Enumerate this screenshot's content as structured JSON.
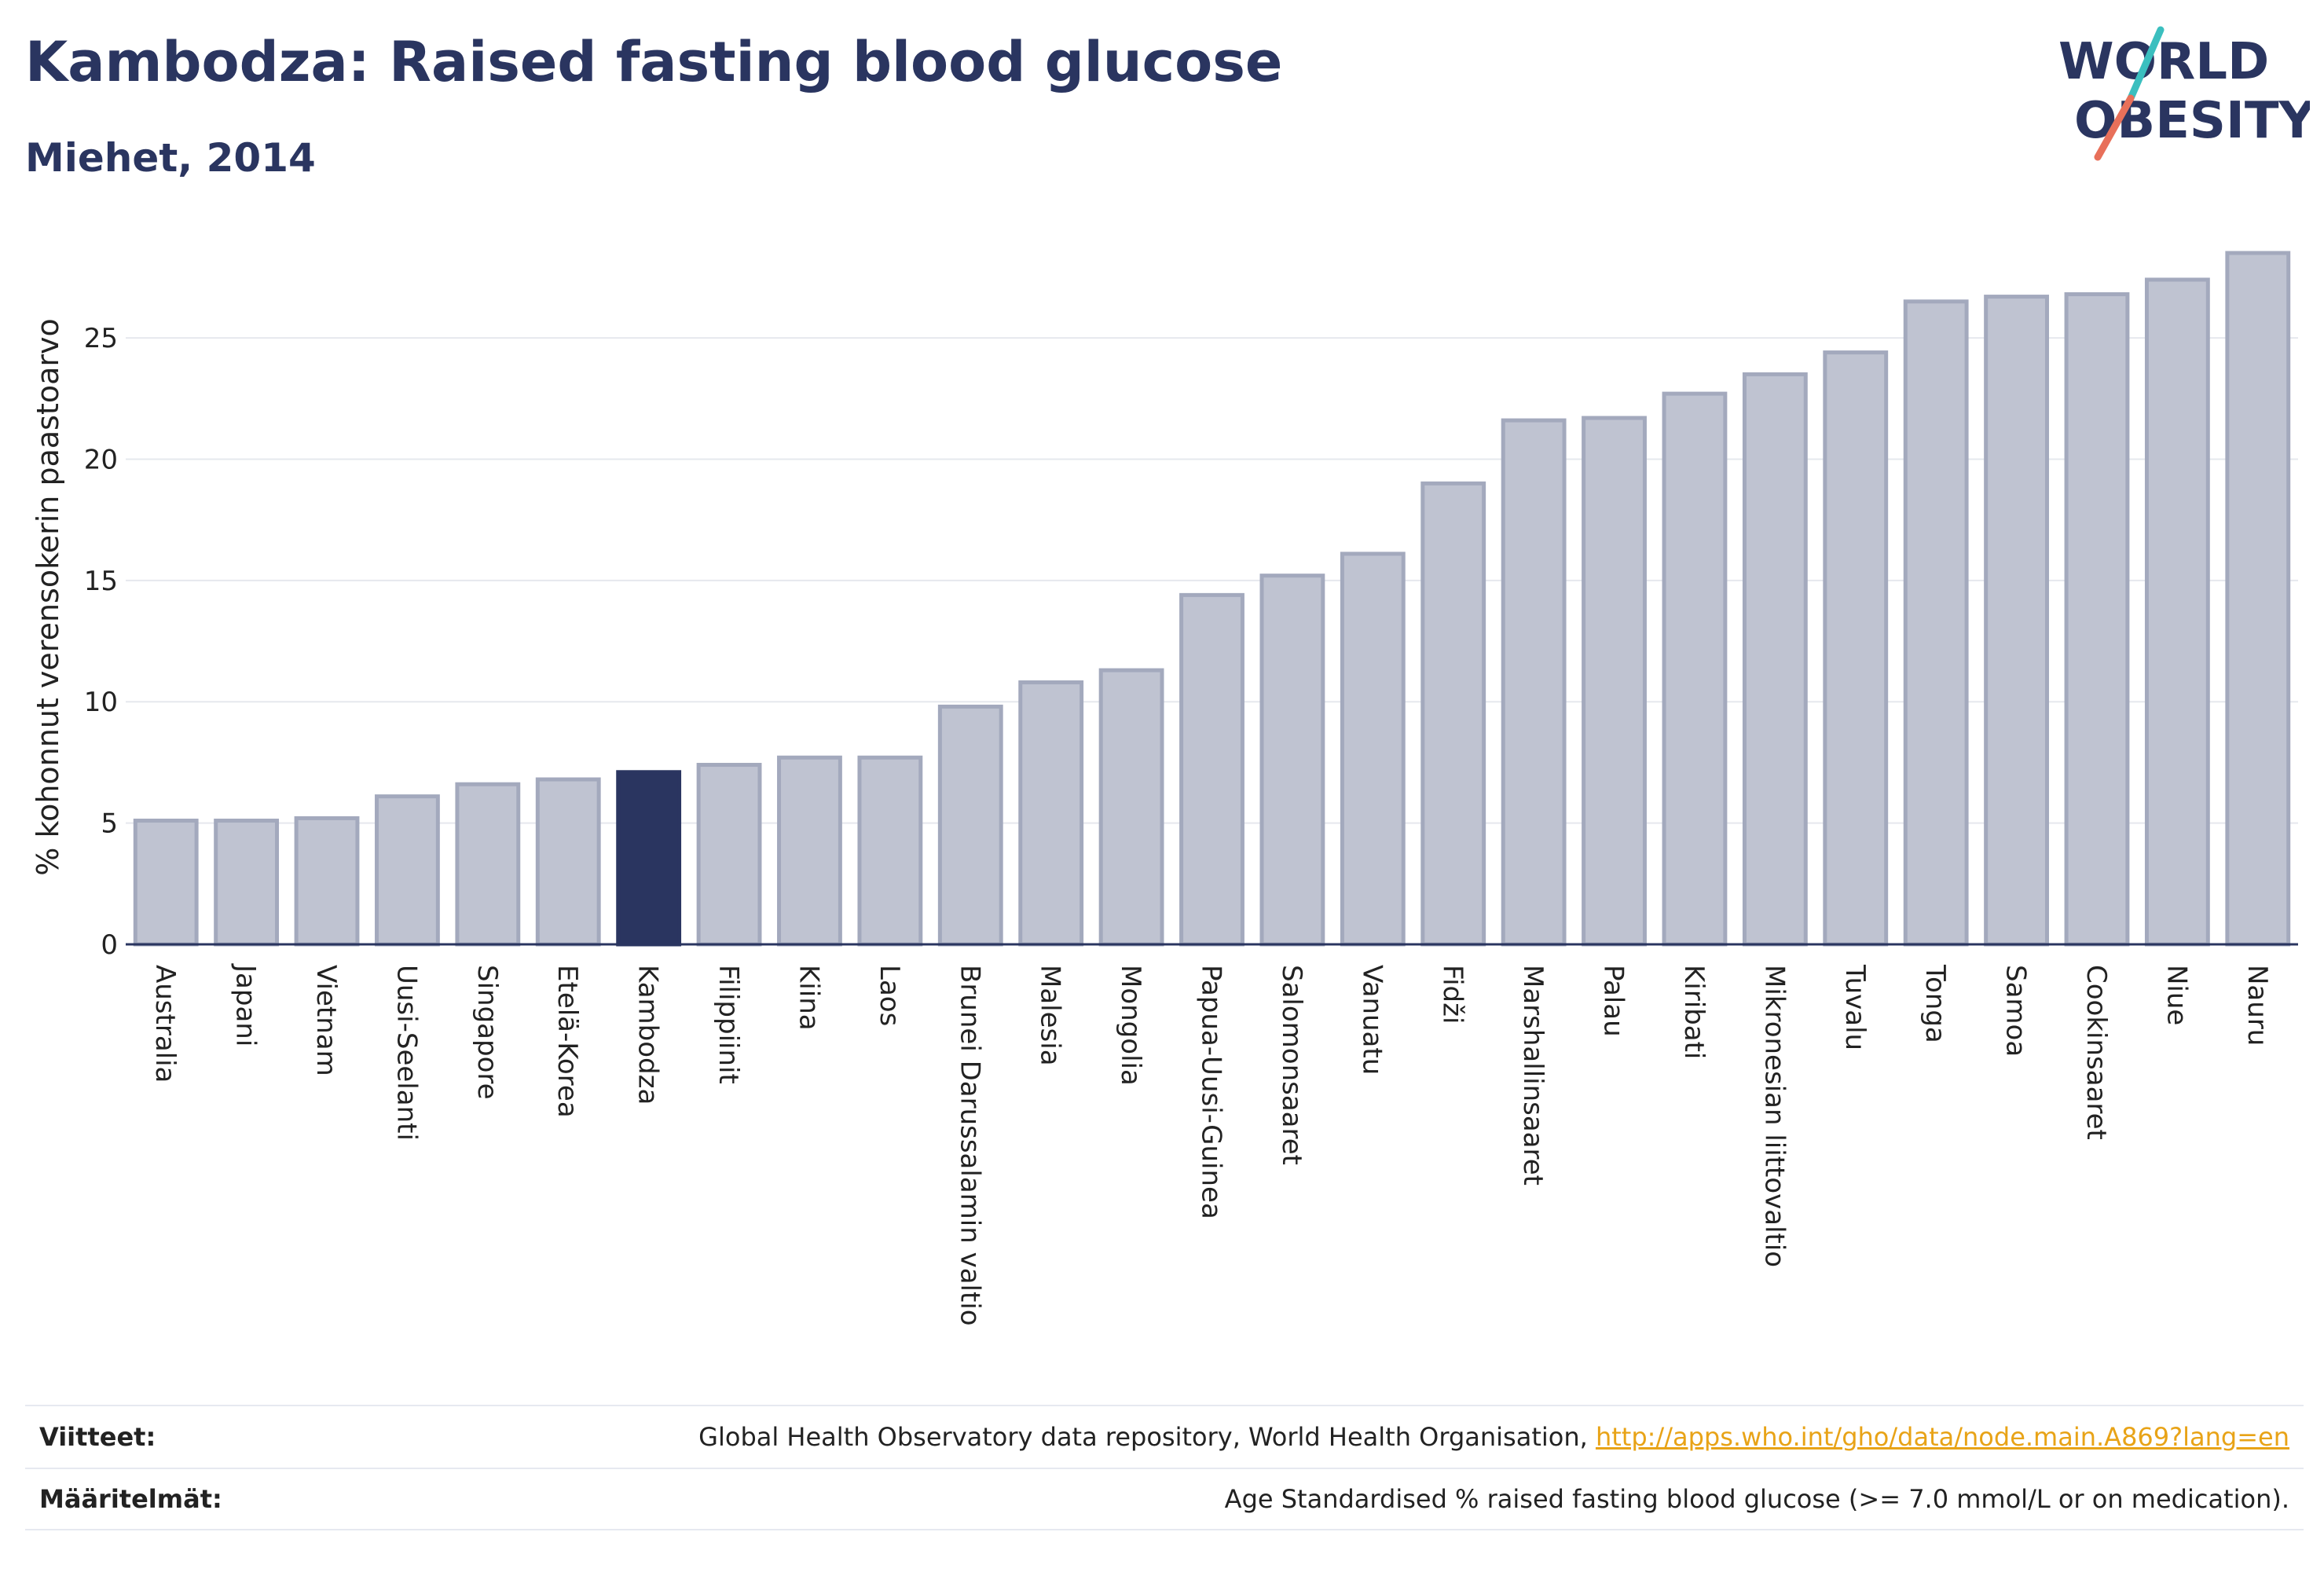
{
  "header": {
    "title": "Kambodza: Raised fasting blood glucose",
    "subtitle": "Miehet, 2014"
  },
  "logo": {
    "line1": "WORLD",
    "line2": "OBESITY",
    "icon": "world-obesity-logo"
  },
  "colors": {
    "bar": "#bfc3d1",
    "bar_border": "#a3a9bd",
    "highlight": "#2a3560",
    "grid": "#e6e8ee",
    "axis": "#2a3560"
  },
  "chart_data": {
    "type": "bar",
    "ylabel": "% kohonnut verensokerin paastoarvo",
    "ylim": [
      0,
      28.5
    ],
    "yticks": [
      0,
      5,
      10,
      15,
      20,
      25
    ],
    "grid": true,
    "highlight": "Kambodza",
    "categories": [
      "Australia",
      "Japani",
      "Vietnam",
      "Uusi-Seelanti",
      "Singapore",
      "Etelä-Korea",
      "Kambodza",
      "Filippiinit",
      "Kiina",
      "Laos",
      "Brunei Darussalamin valtio",
      "Malesia",
      "Mongolia",
      "Papua-Uusi-Guinea",
      "Salomonsaaret",
      "Vanuatu",
      "Fidži",
      "Marshallinsaaret",
      "Palau",
      "Kiribati",
      "Mikronesian liittovaltio",
      "Tuvalu",
      "Tonga",
      "Samoa",
      "Cookinsaaret",
      "Niue",
      "Nauru"
    ],
    "values": [
      5.1,
      5.1,
      5.2,
      6.1,
      6.6,
      6.8,
      7.1,
      7.4,
      7.7,
      7.7,
      9.8,
      10.8,
      11.3,
      14.4,
      15.2,
      16.1,
      19.0,
      21.6,
      21.7,
      22.7,
      23.5,
      24.4,
      26.5,
      26.7,
      26.8,
      27.4,
      28.5
    ]
  },
  "footer": {
    "sources_label": "Viitteet:",
    "sources_text": "Global Health Observatory data repository, World Health Organisation, ",
    "sources_link": "http://apps.who.int/gho/data/node.main.A869?lang=en",
    "definitions_label": "Määritelmät:",
    "definitions_text": "Age Standardised % raised fasting blood glucose (>= 7.0 mmol/L or on medication)."
  }
}
